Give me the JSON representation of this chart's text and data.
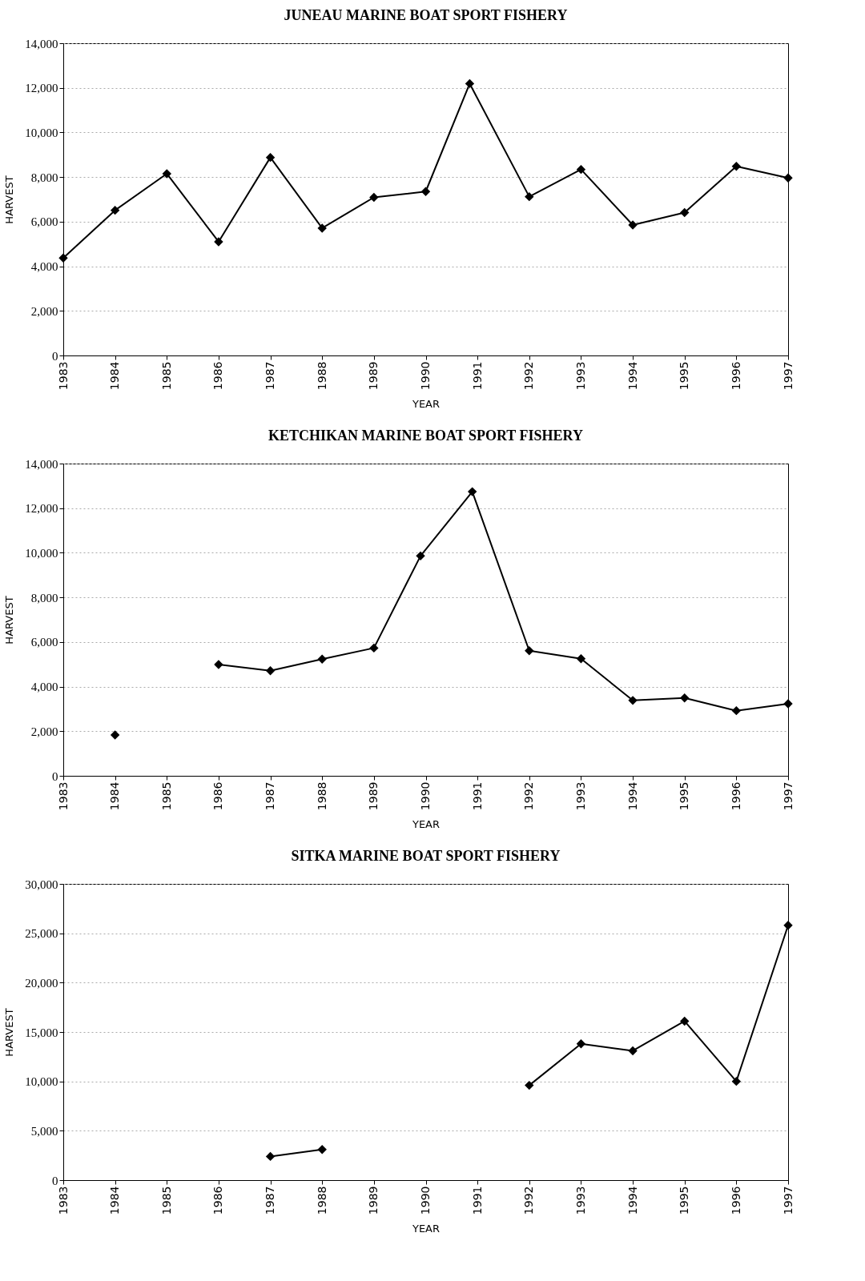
{
  "chart_data": [
    {
      "type": "line",
      "title": "JUNEAU MARINE BOAT SPORT FISHERY",
      "xlabel": "YEAR",
      "ylabel": "HARVEST",
      "xlim": [
        1983,
        1997
      ],
      "xticks": [
        1983,
        1984,
        1985,
        1986,
        1987,
        1988,
        1989,
        1990,
        1991,
        1992,
        1993,
        1994,
        1995,
        1996,
        1997
      ],
      "ylim": [
        0,
        14000
      ],
      "yticks": [
        0,
        {
          "value": 2000,
          "label": "2,000"
        },
        {
          "value": 4000,
          "label": "4,000"
        },
        {
          "value": 6000,
          "label": "6,000"
        },
        {
          "value": 8000,
          "label": "8,000"
        },
        {
          "value": 10000,
          "label": "10,000"
        },
        {
          "value": 12000,
          "label": "12,000"
        },
        {
          "value": 14000,
          "label": "14,000"
        }
      ],
      "grid": "y",
      "marker": "diamond",
      "line_style": "solid",
      "series": [
        {
          "color": "#000000",
          "x": [
            1983,
            1984,
            1985,
            1986,
            1987,
            1988,
            1989,
            1990,
            1990.85,
            1992,
            1993,
            1994,
            1995,
            1996,
            1997
          ],
          "values": [
            4370,
            6510,
            8150,
            5100,
            8880,
            5710,
            7090,
            7350,
            12190,
            7120,
            8340,
            5850,
            6410,
            8480,
            7960
          ]
        }
      ]
    },
    {
      "type": "line",
      "title": "KETCHIKAN MARINE BOAT SPORT FISHERY",
      "xlabel": "YEAR",
      "ylabel": "HARVEST",
      "xlim": [
        1983,
        1997
      ],
      "xticks": [
        1983,
        1984,
        1985,
        1986,
        1987,
        1988,
        1989,
        1990,
        1991,
        1992,
        1993,
        1994,
        1995,
        1996,
        1997
      ],
      "ylim": [
        0,
        14000
      ],
      "yticks": [
        0,
        {
          "value": 2000,
          "label": "2,000"
        },
        {
          "value": 4000,
          "label": "4,000"
        },
        {
          "value": 6000,
          "label": "6,000"
        },
        {
          "value": 8000,
          "label": "8,000"
        },
        {
          "value": 10000,
          "label": "10,000"
        },
        {
          "value": 12000,
          "label": "12,000"
        },
        {
          "value": 14000,
          "label": "14,000"
        }
      ],
      "grid": "y",
      "marker": "diamond",
      "line_style": "solid",
      "series": [
        {
          "color": "#000000",
          "x": [
            1984,
            1985,
            1986,
            1987,
            1988,
            1989,
            1989.9,
            1990.9,
            1992,
            1993,
            1994,
            1995,
            1996,
            1997
          ],
          "values": [
            1830,
            null,
            4990,
            4710,
            5230,
            5730,
            9860,
            12740,
            5610,
            5250,
            3380,
            3490,
            2920,
            3230
          ]
        }
      ]
    },
    {
      "type": "line",
      "title": "SITKA MARINE BOAT SPORT FISHERY",
      "xlabel": "YEAR",
      "ylabel": "HARVEST",
      "xlim": [
        1983,
        1997
      ],
      "xticks": [
        1983,
        1984,
        1985,
        1986,
        1987,
        1988,
        1989,
        1990,
        1991,
        1992,
        1993,
        1994,
        1995,
        1996,
        1997
      ],
      "ylim": [
        0,
        30000
      ],
      "yticks": [
        0,
        {
          "value": 5000,
          "label": "5,000"
        },
        {
          "value": 10000,
          "label": "10,000"
        },
        {
          "value": 15000,
          "label": "15,000"
        },
        {
          "value": 20000,
          "label": "20,000"
        },
        {
          "value": 25000,
          "label": "25,000"
        },
        {
          "value": 30000,
          "label": "30,000"
        }
      ],
      "grid": "y",
      "marker": "diamond",
      "line_style": "solid",
      "series": [
        {
          "color": "#000000",
          "x": [
            1987,
            1988,
            1989,
            1992,
            1993,
            1994,
            1995,
            1996,
            1997
          ],
          "values": [
            2400,
            3100,
            null,
            9600,
            13800,
            13100,
            16100,
            10000,
            25800
          ]
        }
      ]
    }
  ]
}
